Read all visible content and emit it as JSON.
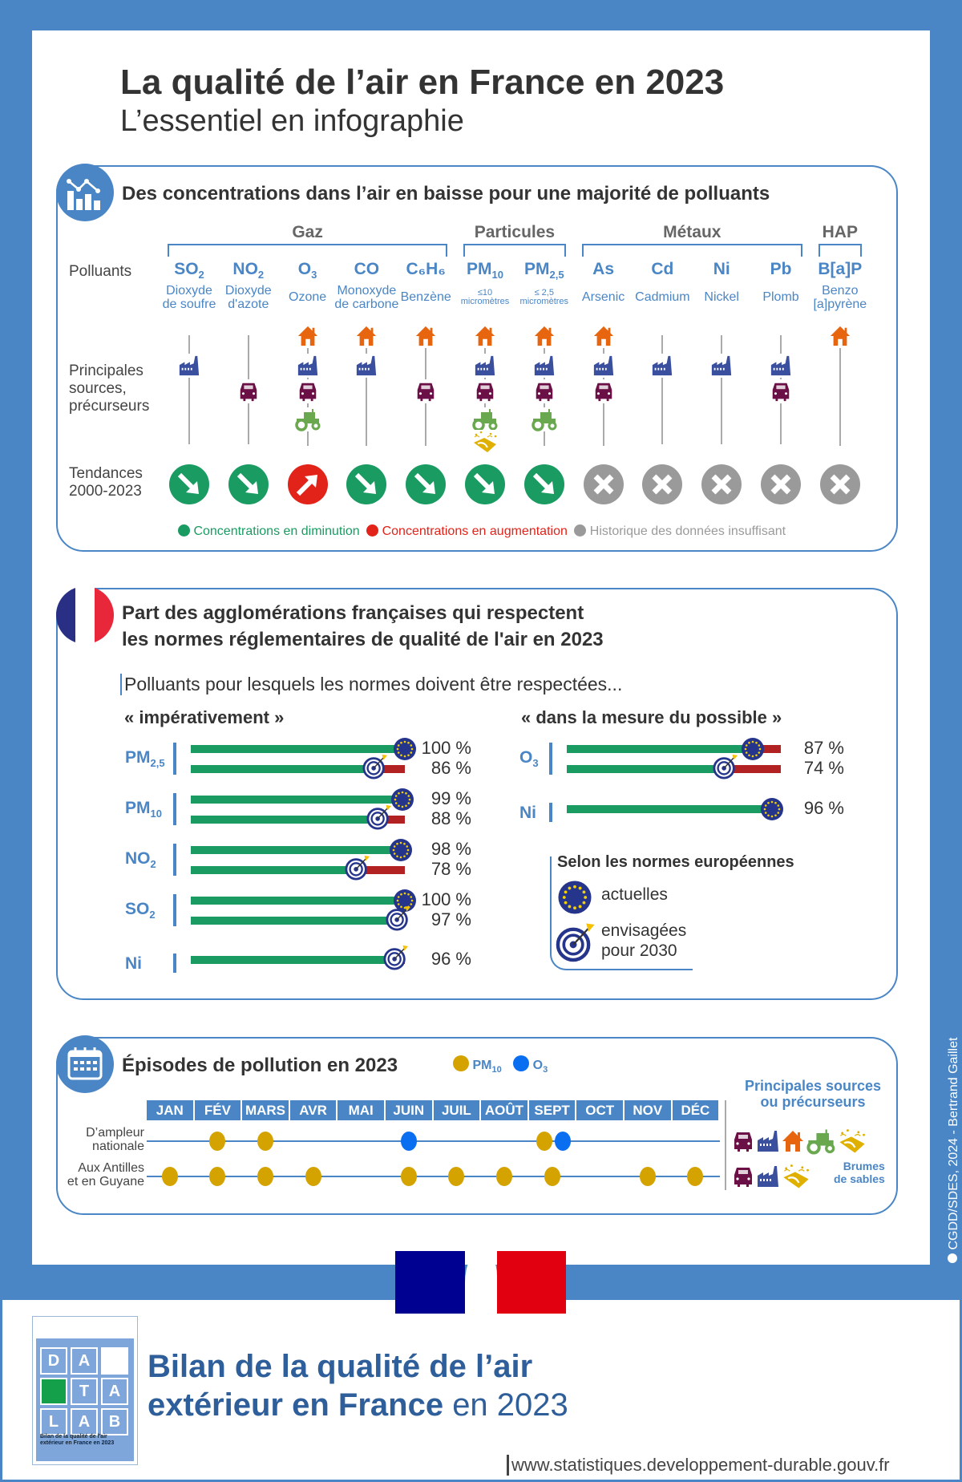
{
  "header": {
    "title": "La qualité de l’air en France en 2023",
    "subtitle": "L’essentiel en infographie"
  },
  "colors": {
    "brand_blue": "#4a86c5",
    "down": "#1a9b62",
    "up": "#e2231a",
    "insufficient": "#9a9a9a",
    "house": "#e8650f",
    "factory": "#3a4f9e",
    "car": "#6b1046",
    "tractor": "#6aa84f",
    "sand": "#e0b000",
    "pm10": "#d4a300",
    "o3": "#0a6ef0",
    "eu": "#26358c"
  },
  "section1": {
    "title": "Des concentrations dans l’air en baisse pour une majorité de polluants",
    "icon": "bar-chart-icon",
    "row_labels": {
      "pollutants": "Polluants",
      "sources": [
        "Principales",
        "sources,",
        "précurseurs"
      ],
      "trends": [
        "Tendances",
        "2000-2023"
      ]
    },
    "groups": [
      {
        "label": "Gaz",
        "from": 0,
        "to": 4
      },
      {
        "label": "Particules",
        "from": 5,
        "to": 6
      },
      {
        "label": "Métaux",
        "from": 7,
        "to": 10
      },
      {
        "label": "HAP",
        "from": 11,
        "to": 11
      }
    ],
    "pollutants": [
      {
        "symbol": "SO",
        "sub": "2",
        "name": [
          "Dioxyde",
          "de soufre"
        ],
        "sources": [
          "factory"
        ],
        "trend": "down"
      },
      {
        "symbol": "NO",
        "sub": "2",
        "name": [
          "Dioxyde",
          "d'azote"
        ],
        "sources": [
          "car"
        ],
        "trend": "down"
      },
      {
        "symbol": "O",
        "sub": "3",
        "name": [
          "Ozone"
        ],
        "sources": [
          "house",
          "factory",
          "car",
          "tractor"
        ],
        "trend": "up"
      },
      {
        "symbol": "CO",
        "sub": "",
        "name": [
          "Monoxyde",
          "de carbone"
        ],
        "sources": [
          "house",
          "factory"
        ],
        "trend": "down"
      },
      {
        "symbol": "C₆H₆",
        "sub": "",
        "name": [
          "Benzène"
        ],
        "sources": [
          "house",
          "car"
        ],
        "trend": "down"
      },
      {
        "symbol": "PM",
        "sub": "10",
        "name": [
          "≤10",
          "micromètres"
        ],
        "small": true,
        "sources": [
          "house",
          "factory",
          "car",
          "tractor",
          "sand"
        ],
        "trend": "down"
      },
      {
        "symbol": "PM",
        "sub": "2,5",
        "name": [
          "≤ 2,5",
          "micromètres"
        ],
        "small": true,
        "sources": [
          "house",
          "factory",
          "car",
          "tractor"
        ],
        "trend": "down"
      },
      {
        "symbol": "As",
        "sub": "",
        "name": [
          "Arsenic"
        ],
        "sources": [
          "house",
          "factory",
          "car"
        ],
        "trend": "insufficient"
      },
      {
        "symbol": "Cd",
        "sub": "",
        "name": [
          "Cadmium"
        ],
        "sources": [
          "factory"
        ],
        "trend": "insufficient"
      },
      {
        "symbol": "Ni",
        "sub": "",
        "name": [
          "Nickel"
        ],
        "sources": [
          "factory"
        ],
        "trend": "insufficient"
      },
      {
        "symbol": "Pb",
        "sub": "",
        "name": [
          "Plomb"
        ],
        "sources": [
          "factory",
          "car"
        ],
        "trend": "insufficient"
      },
      {
        "symbol": "B[a]P",
        "sub": "",
        "name": [
          "Benzo",
          "[a]pyrène"
        ],
        "sources": [
          "house"
        ],
        "trend": "insufficient"
      }
    ],
    "legend": {
      "down": "Concentrations en diminution",
      "up": "Concentrations en augmentation",
      "insufficient": "Historique des données insuffisant"
    }
  },
  "section2": {
    "title_line1": "Part des agglomérations françaises qui respectent",
    "title_line2": "les normes réglementaires de qualité de l'air en 2023",
    "icon": "french-flag-icon",
    "intro": "Polluants pour lesquels les normes doivent être respectées...",
    "col_left": "« impérativement »",
    "col_right": "« dans la mesure du possible »",
    "left": [
      {
        "label": "PM",
        "sub": "2,5",
        "bars": [
          {
            "value": 100,
            "standard": "current"
          },
          {
            "value": 86,
            "standard": "2030"
          }
        ]
      },
      {
        "label": "PM",
        "sub": "10",
        "bars": [
          {
            "value": 99,
            "standard": "current"
          },
          {
            "value": 88,
            "standard": "2030"
          }
        ]
      },
      {
        "label": "NO",
        "sub": "2",
        "bars": [
          {
            "value": 98,
            "standard": "current"
          },
          {
            "value": 78,
            "standard": "2030"
          }
        ]
      },
      {
        "label": "SO",
        "sub": "2",
        "bars": [
          {
            "value": 100,
            "standard": "current"
          },
          {
            "value": 97,
            "standard": "2030"
          }
        ]
      },
      {
        "label": "Ni",
        "sub": "",
        "bars": [
          {
            "value": 96,
            "standard": "2030"
          }
        ]
      }
    ],
    "right": [
      {
        "label": "O",
        "sub": "3",
        "bars": [
          {
            "value": 87,
            "standard": "current"
          },
          {
            "value": 74,
            "standard": "2030"
          }
        ]
      },
      {
        "label": "Ni",
        "sub": "",
        "bars": [
          {
            "value": 96,
            "standard": "current"
          }
        ]
      }
    ],
    "legend": {
      "title": "Selon les normes européennes",
      "current": "actuelles",
      "future_line1": "envisagées",
      "future_line2": "pour 2030"
    }
  },
  "section3": {
    "title": "Épisodes de pollution en 2023",
    "icon": "calendar-icon",
    "legend": [
      {
        "key": "pm10",
        "label": "PM",
        "sub": "10"
      },
      {
        "key": "o3",
        "label": "O",
        "sub": "3"
      }
    ],
    "months": [
      "JAN",
      "FÉV",
      "MARS",
      "AVR",
      "MAI",
      "JUIN",
      "JUIL",
      "AOÛT",
      "SEPT",
      "OCT",
      "NOV",
      "DÉC"
    ],
    "rows": [
      {
        "label": [
          "D’ampleur",
          "nationale"
        ],
        "events": [
          {
            "month": 1,
            "pollutant": "pm10"
          },
          {
            "month": 2,
            "pollutant": "pm10"
          },
          {
            "month": 5,
            "pollutant": "o3"
          },
          {
            "month": 8,
            "pollutant": "pm10"
          },
          {
            "month": 8,
            "pollutant": "o3"
          }
        ],
        "sources": [
          "car",
          "factory",
          "house",
          "tractor",
          "sand"
        ]
      },
      {
        "label": [
          "Aux Antilles",
          "et en Guyane"
        ],
        "events": [
          {
            "month": 0,
            "pollutant": "pm10"
          },
          {
            "month": 1,
            "pollutant": "pm10"
          },
          {
            "month": 2,
            "pollutant": "pm10"
          },
          {
            "month": 3,
            "pollutant": "pm10"
          },
          {
            "month": 5,
            "pollutant": "pm10"
          },
          {
            "month": 6,
            "pollutant": "pm10"
          },
          {
            "month": 7,
            "pollutant": "pm10"
          },
          {
            "month": 8,
            "pollutant": "pm10"
          },
          {
            "month": 10,
            "pollutant": "pm10"
          },
          {
            "month": 11,
            "pollutant": "pm10"
          }
        ],
        "sources": [
          "car",
          "factory",
          "sand"
        ]
      }
    ],
    "sources_title": [
      "Principales sources",
      "ou précurseurs"
    ],
    "sand_label": [
      "Brumes",
      "de sables"
    ]
  },
  "footer": {
    "credit": "CGDD/SDES, 2024 - Bertrand Gaillet",
    "cover_letters": [
      "D",
      "A",
      "",
      "",
      "T",
      "A",
      "L",
      "A",
      "B"
    ],
    "cover_title": [
      "Bilan de la qualité de l'air",
      "extérieur en France en 2023"
    ],
    "report_line1": "Bilan de la qualité de l’air",
    "report_line2_bold": "extérieur en France",
    "report_line2_light": "en 2023",
    "url": "www.statistiques.developpement-durable.gouv.fr"
  }
}
